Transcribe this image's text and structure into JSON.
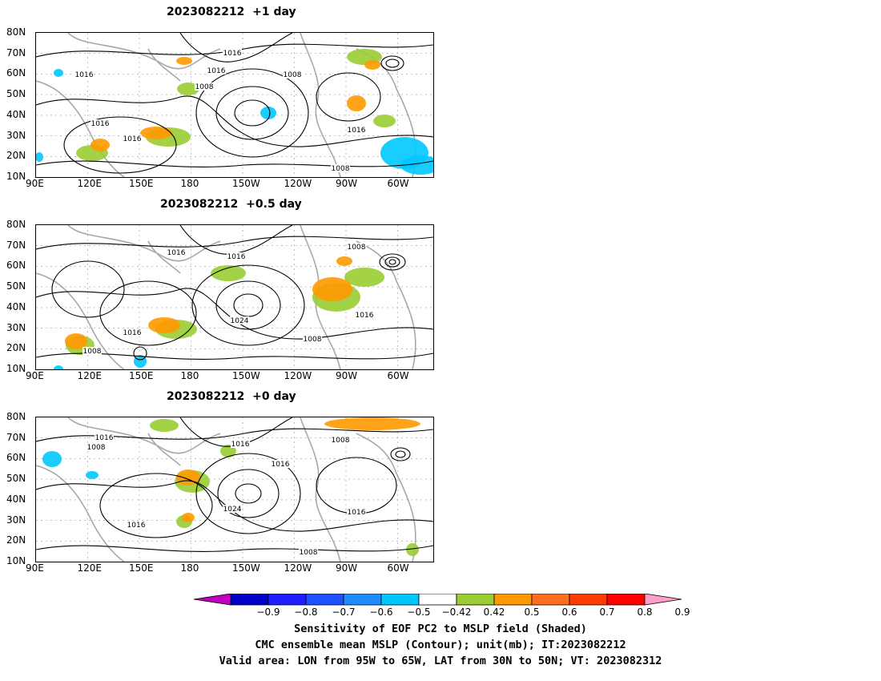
{
  "panels": [
    {
      "title": "2023082212  +1 day",
      "contour_labels": [
        "1016",
        "1016",
        "1016",
        "1008",
        "1016",
        "1008",
        "1016",
        "1016",
        "1008"
      ]
    },
    {
      "title": "2023082212  +0.5 day",
      "contour_labels": [
        "1016",
        "1016",
        "1008",
        "1016",
        "1024",
        "1016",
        "1008",
        "1008"
      ]
    },
    {
      "title": "2023082212  +0 day",
      "contour_labels": [
        "1016",
        "1008",
        "1016",
        "1016",
        "1008",
        "1024",
        "1016",
        "1016",
        "1008"
      ]
    }
  ],
  "axes": {
    "lat_ticks": [
      "80N",
      "70N",
      "60N",
      "50N",
      "40N",
      "30N",
      "20N",
      "10N"
    ],
    "lon_ticks": [
      "90E",
      "120E",
      "150E",
      "180",
      "150W",
      "120W",
      "90W",
      "60W"
    ]
  },
  "colorbar": {
    "labels": [
      "−0.9",
      "−0.8",
      "−0.7",
      "−0.6",
      "−0.5",
      "−0.42",
      "0.42",
      "0.5",
      "0.6",
      "0.7",
      "0.8",
      "0.9"
    ],
    "colors": [
      "#c000c0",
      "#0000c8",
      "#1e1eff",
      "#1e50ff",
      "#1e8cff",
      "#00c8ff",
      "#ffffff",
      "#9acd32",
      "#ff9900",
      "#ff6e1e",
      "#ff3c00",
      "#ff0000",
      "#ff9ec8"
    ]
  },
  "caption": {
    "line1": "Sensitivity of EOF PC2 to MSLP field (Shaded)",
    "line2": "CMC ensemble mean MSLP (Contour); unit(mb); IT:2023082212",
    "line3": "Valid area: LON from 95W to 65W, LAT from 30N to 50N; VT: 2023082312"
  }
}
